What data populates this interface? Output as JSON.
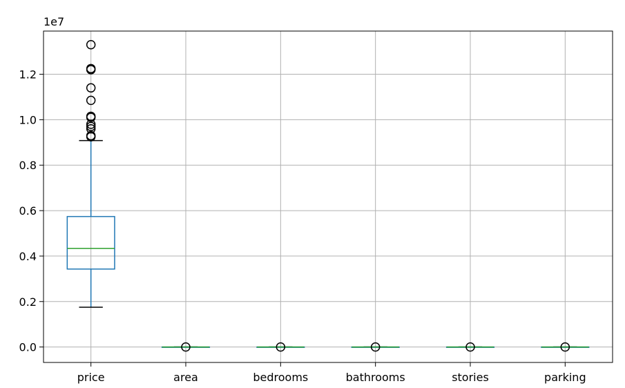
{
  "chart_data": {
    "type": "boxplot",
    "title": "",
    "xlabel": "",
    "ylabel": "",
    "y_offset_label": "1e7",
    "ylim": [
      -0.068,
      1.39
    ],
    "yticks": [
      {
        "value": 0.0,
        "label": "0.0"
      },
      {
        "value": 0.2,
        "label": "0.2"
      },
      {
        "value": 0.4,
        "label": "0.4"
      },
      {
        "value": 0.6,
        "label": "0.6"
      },
      {
        "value": 0.8,
        "label": "0.8"
      },
      {
        "value": 1.0,
        "label": "1.0"
      },
      {
        "value": 1.2,
        "label": "1.2"
      }
    ],
    "grid": true,
    "colors": {
      "box": "#1f77b4",
      "median": "#2ca02c",
      "whisker_cap": "#000000",
      "flier": "#000000",
      "grid": "#b0b0b0",
      "axes": "#000000"
    },
    "categories": [
      "price",
      "area",
      "bedrooms",
      "bathrooms",
      "stories",
      "parking"
    ],
    "boxes": [
      {
        "name": "price",
        "whislo": 0.175,
        "q1": 0.343,
        "med": 0.434,
        "q3": 0.574,
        "whishi": 0.908,
        "fliers": [
          1.33,
          1.225,
          1.22,
          1.14,
          1.085,
          1.015,
          1.01,
          0.98,
          0.97,
          0.96,
          0.93,
          0.925
        ]
      },
      {
        "name": "area",
        "whislo": 0.0,
        "q1": 0.0,
        "med": 0.0,
        "q3": 0.0,
        "whishi": 0.0,
        "fliers": [
          0.0
        ]
      },
      {
        "name": "bedrooms",
        "whislo": 0.0,
        "q1": 0.0,
        "med": 0.0,
        "q3": 0.0,
        "whishi": 0.0,
        "fliers": [
          0.0
        ]
      },
      {
        "name": "bathrooms",
        "whislo": 0.0,
        "q1": 0.0,
        "med": 0.0,
        "q3": 0.0,
        "whishi": 0.0,
        "fliers": [
          0.0
        ]
      },
      {
        "name": "stories",
        "whislo": 0.0,
        "q1": 0.0,
        "med": 0.0,
        "q3": 0.0,
        "whishi": 0.0,
        "fliers": [
          0.0
        ]
      },
      {
        "name": "parking",
        "whislo": 0.0,
        "q1": 0.0,
        "med": 0.0,
        "q3": 0.0,
        "whishi": 0.0,
        "fliers": [
          0.0
        ]
      }
    ]
  }
}
